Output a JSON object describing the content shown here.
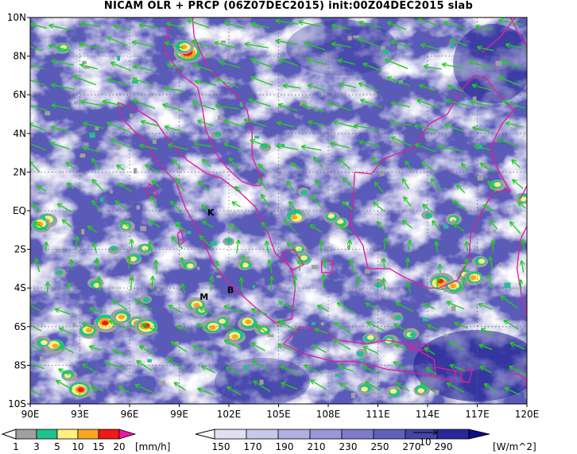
{
  "title": "NICAM OLR + PRCP (06Z07DEC2015) init:00Z04DEC2015 slab",
  "axes": {
    "lon_range": [
      90,
      120
    ],
    "lat_range": [
      -10,
      10
    ],
    "lon_ticks": [
      "90E",
      "93E",
      "96E",
      "99E",
      "102E",
      "105E",
      "108E",
      "111E",
      "114E",
      "117E",
      "120E"
    ],
    "lat_ticks": [
      "10N",
      "8N",
      "6N",
      "4N",
      "2N",
      "EQ",
      "2S",
      "4S",
      "6S",
      "8S",
      "10S"
    ]
  },
  "station_labels": [
    {
      "text": "K",
      "lon": 100.9,
      "lat": -0.25
    },
    {
      "text": "M",
      "lon": 100.5,
      "lat": -4.6
    },
    {
      "text": "B",
      "lon": 102.1,
      "lat": -4.25
    }
  ],
  "precip_colorbar": {
    "labels": [
      "1",
      "3",
      "5",
      "10",
      "15",
      "20"
    ],
    "unit": "[mm/h]",
    "colors": [
      "#a0a0a0",
      "#20c090",
      "#fff080",
      "#f8a820",
      "#f01818",
      "#f018a0"
    ]
  },
  "olr_colorbar": {
    "labels": [
      "150",
      "170",
      "190",
      "210",
      "230",
      "250",
      "270",
      "290"
    ],
    "unit": "[W/m^2]",
    "colors": [
      "#ffffff",
      "#e0e0f4",
      "#c8c8ec",
      "#b0b0e2",
      "#9898d8",
      "#7c7cca",
      "#6060bc",
      "#4444aa",
      "#28289a",
      "#0c0c84"
    ]
  },
  "vector_ref": {
    "label": "10"
  },
  "colors": {
    "coast": "#e0209a",
    "wind": "#20cc20",
    "grid": "#666666"
  }
}
